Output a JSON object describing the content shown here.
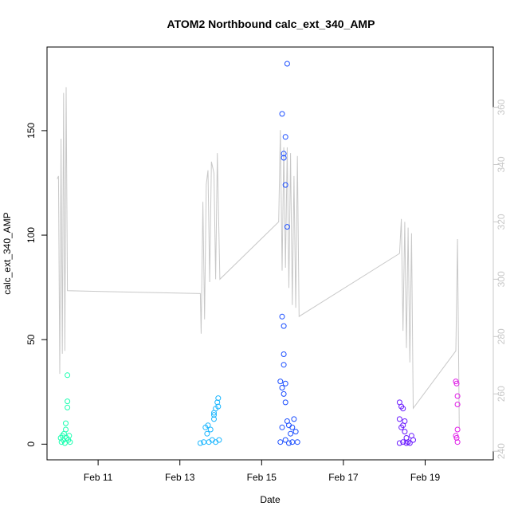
{
  "chart_data": {
    "type": "scatter",
    "title": "ATOM2 Northbound calc_ext_340_AMP",
    "xlabel": "Date",
    "ylabel": "calc_ext_340_AMP",
    "xlim": [
      "2019-02-09T18:00",
      "2019-02-20T16:00"
    ],
    "ylim": [
      -7.5,
      190
    ],
    "x_ticks": [
      {
        "date": "2019-02-11",
        "label": "Feb 11"
      },
      {
        "date": "2019-02-13",
        "label": "Feb 13"
      },
      {
        "date": "2019-02-15",
        "label": "Feb 15"
      },
      {
        "date": "2019-02-17",
        "label": "Feb 17"
      },
      {
        "date": "2019-02-19",
        "label": "Feb 19"
      }
    ],
    "y_ticks": [
      0,
      50,
      100,
      150
    ],
    "y2_axis": {
      "ticks": [
        240,
        260,
        280,
        300,
        320,
        340,
        360
      ],
      "color": "#c8c8c8",
      "range": [
        237,
        381
      ],
      "color_of_line": "#c8c8c8"
    },
    "grid": false,
    "legend": "none",
    "series": [
      {
        "color": "#1affb0",
        "points": [
          [
            "2019-02-10T02:00",
            3
          ],
          [
            "2019-02-10T02:30",
            1
          ],
          [
            "2019-02-10T03:00",
            4
          ],
          [
            "2019-02-10T03:30",
            2
          ],
          [
            "2019-02-10T04:00",
            5
          ],
          [
            "2019-02-10T04:30",
            0.5
          ],
          [
            "2019-02-10T05:00",
            7
          ],
          [
            "2019-02-10T05:00",
            10
          ],
          [
            "2019-02-10T05:30",
            3
          ],
          [
            "2019-02-10T06:00",
            33
          ],
          [
            "2019-02-10T06:00",
            20.5
          ],
          [
            "2019-02-10T06:00",
            17.5
          ],
          [
            "2019-02-10T06:30",
            2
          ],
          [
            "2019-02-10T07:00",
            4
          ],
          [
            "2019-02-10T07:30",
            1
          ]
        ]
      },
      {
        "color": "#1ab6ff",
        "points": [
          [
            "2019-02-13T12:00",
            0.5
          ],
          [
            "2019-02-13T14:00",
            1
          ],
          [
            "2019-02-13T15:00",
            8
          ],
          [
            "2019-02-13T16:00",
            5
          ],
          [
            "2019-02-13T16:30",
            9
          ],
          [
            "2019-02-13T17:00",
            1
          ],
          [
            "2019-02-13T18:00",
            7
          ],
          [
            "2019-02-13T19:00",
            2
          ],
          [
            "2019-02-13T20:00",
            14
          ],
          [
            "2019-02-13T20:00",
            12
          ],
          [
            "2019-02-13T20:00",
            15
          ],
          [
            "2019-02-13T21:00",
            17
          ],
          [
            "2019-02-13T21:00",
            1
          ],
          [
            "2019-02-13T22:00",
            20
          ],
          [
            "2019-02-13T22:30",
            22
          ],
          [
            "2019-02-13T22:30",
            18
          ],
          [
            "2019-02-13T23:00",
            2
          ]
        ]
      },
      {
        "color": "#1a4dff",
        "points": [
          [
            "2019-02-15T12:00",
            158
          ],
          [
            "2019-02-15T13:00",
            137
          ],
          [
            "2019-02-15T13:00",
            139
          ],
          [
            "2019-02-15T14:00",
            147
          ],
          [
            "2019-02-15T14:00",
            124
          ],
          [
            "2019-02-15T15:00",
            104
          ],
          [
            "2019-02-15T15:00",
            182
          ],
          [
            "2019-02-15T12:00",
            61
          ],
          [
            "2019-02-15T13:00",
            56.5
          ],
          [
            "2019-02-15T13:00",
            43
          ],
          [
            "2019-02-15T13:00",
            38
          ],
          [
            "2019-02-15T11:00",
            30
          ],
          [
            "2019-02-15T12:00",
            27
          ],
          [
            "2019-02-15T13:00",
            24
          ],
          [
            "2019-02-15T14:00",
            29
          ],
          [
            "2019-02-15T14:00",
            20
          ],
          [
            "2019-02-15T12:00",
            8
          ],
          [
            "2019-02-15T15:00",
            11
          ],
          [
            "2019-02-15T16:00",
            9
          ],
          [
            "2019-02-15T17:00",
            5
          ],
          [
            "2019-02-15T18:00",
            8
          ],
          [
            "2019-02-15T19:00",
            12
          ],
          [
            "2019-02-15T20:00",
            6
          ],
          [
            "2019-02-15T11:00",
            1
          ],
          [
            "2019-02-15T14:00",
            2
          ],
          [
            "2019-02-15T16:00",
            0.5
          ],
          [
            "2019-02-15T18:00",
            1
          ],
          [
            "2019-02-15T21:00",
            1
          ]
        ]
      },
      {
        "color": "#6a1aff",
        "points": [
          [
            "2019-02-18T09:00",
            20
          ],
          [
            "2019-02-18T10:00",
            18
          ],
          [
            "2019-02-18T11:00",
            17
          ],
          [
            "2019-02-18T09:00",
            12
          ],
          [
            "2019-02-18T10:00",
            8
          ],
          [
            "2019-02-18T11:00",
            9
          ],
          [
            "2019-02-18T12:00",
            11
          ],
          [
            "2019-02-18T12:00",
            6
          ],
          [
            "2019-02-18T13:00",
            3
          ],
          [
            "2019-02-18T14:00",
            1
          ],
          [
            "2019-02-18T16:00",
            4
          ],
          [
            "2019-02-18T17:00",
            2
          ],
          [
            "2019-02-18T09:00",
            0.5
          ],
          [
            "2019-02-18T11:00",
            1
          ],
          [
            "2019-02-18T13:00",
            0.5
          ],
          [
            "2019-02-18T15:00",
            0.5
          ]
        ]
      },
      {
        "color": "#e01ae8",
        "points": [
          [
            "2019-02-19T18:00",
            30
          ],
          [
            "2019-02-19T18:30",
            29
          ],
          [
            "2019-02-19T19:00",
            23
          ],
          [
            "2019-02-19T19:00",
            19
          ],
          [
            "2019-02-19T19:00",
            7
          ],
          [
            "2019-02-19T18:00",
            4
          ],
          [
            "2019-02-19T18:30",
            3
          ],
          [
            "2019-02-19T19:00",
            1
          ]
        ]
      }
    ],
    "line_series_y2": {
      "color": "#c8c8c8",
      "points": [
        [
          "2019-02-10T00:00",
          335
        ],
        [
          "2019-02-10T00:45",
          336
        ],
        [
          "2019-02-10T01:30",
          267
        ],
        [
          "2019-02-10T02:15",
          349
        ],
        [
          "2019-02-10T03:00",
          274
        ],
        [
          "2019-02-10T03:45",
          365
        ],
        [
          "2019-02-10T04:30",
          275
        ],
        [
          "2019-02-10T05:15",
          367
        ],
        [
          "2019-02-10T06:00",
          296
        ],
        [
          "2019-02-13T12:00",
          295
        ],
        [
          "2019-02-13T12:30",
          281
        ],
        [
          "2019-02-13T13:30",
          327
        ],
        [
          "2019-02-13T14:30",
          286
        ],
        [
          "2019-02-13T15:30",
          333
        ],
        [
          "2019-02-13T16:30",
          338
        ],
        [
          "2019-02-13T17:30",
          299
        ],
        [
          "2019-02-13T18:30",
          341
        ],
        [
          "2019-02-13T20:00",
          337
        ],
        [
          "2019-02-13T21:00",
          300
        ],
        [
          "2019-02-13T22:00",
          344
        ],
        [
          "2019-02-13T23:30",
          300
        ],
        [
          "2019-02-15T10:00",
          320
        ],
        [
          "2019-02-15T11:00",
          352
        ],
        [
          "2019-02-15T12:00",
          303
        ],
        [
          "2019-02-15T13:00",
          346
        ],
        [
          "2019-02-15T14:00",
          304
        ],
        [
          "2019-02-15T15:00",
          346
        ],
        [
          "2019-02-15T16:00",
          297
        ],
        [
          "2019-02-15T17:00",
          344
        ],
        [
          "2019-02-15T18:00",
          291
        ],
        [
          "2019-02-15T19:00",
          336
        ],
        [
          "2019-02-15T20:00",
          290
        ],
        [
          "2019-02-15T21:00",
          343
        ],
        [
          "2019-02-15T22:00",
          287
        ],
        [
          "2019-02-18T09:00",
          309
        ],
        [
          "2019-02-18T10:00",
          321
        ],
        [
          "2019-02-18T11:00",
          282
        ],
        [
          "2019-02-18T12:00",
          320
        ],
        [
          "2019-02-18T13:00",
          276
        ],
        [
          "2019-02-18T14:00",
          318
        ],
        [
          "2019-02-18T15:00",
          271
        ],
        [
          "2019-02-18T16:00",
          316
        ],
        [
          "2019-02-18T17:00",
          255
        ],
        [
          "2019-02-19T18:00",
          275
        ],
        [
          "2019-02-19T19:00",
          314
        ],
        [
          "2019-02-19T20:00",
          248
        ]
      ]
    }
  }
}
